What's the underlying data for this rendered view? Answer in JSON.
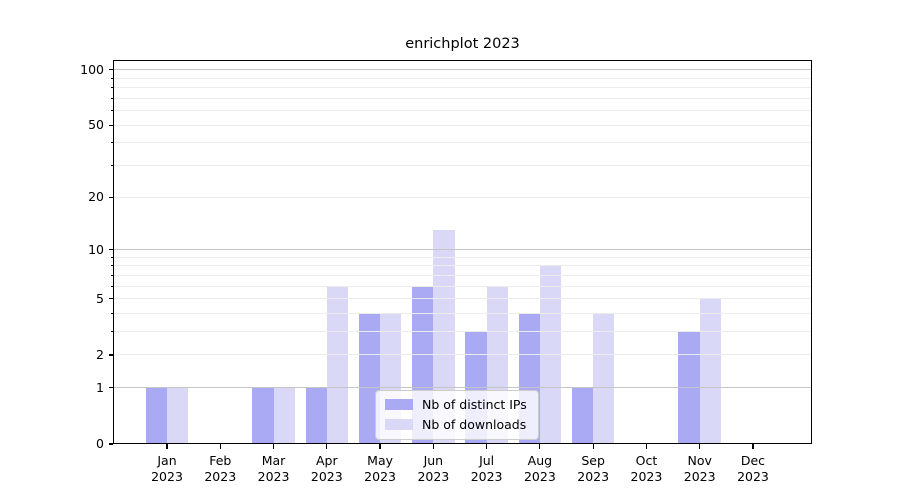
{
  "chart_data": {
    "type": "bar",
    "title": "enrichplot 2023",
    "categories": [
      "Jan 2023",
      "Feb 2023",
      "Mar 2023",
      "Apr 2023",
      "May 2023",
      "Jun 2023",
      "Jul 2023",
      "Aug 2023",
      "Sep 2023",
      "Oct 2023",
      "Nov 2023",
      "Dec 2023"
    ],
    "series": [
      {
        "name": "Nb of distinct IPs",
        "color": "#a9a9f4",
        "values": [
          1,
          0,
          1,
          1,
          4,
          6,
          3,
          4,
          1,
          0,
          3,
          0
        ]
      },
      {
        "name": "Nb of downloads",
        "color": "#d9d9f7",
        "values": [
          1,
          0,
          1,
          6,
          4,
          13,
          6,
          8,
          4,
          0,
          5,
          0
        ]
      }
    ],
    "xlabel": "",
    "ylabel": "",
    "yscale": "log1p",
    "ylim": [
      0,
      113
    ],
    "yticks": [
      0,
      1,
      2,
      5,
      10,
      20,
      50,
      100
    ],
    "major_gridlines": [
      1,
      10,
      100
    ],
    "minor_gridlines": [
      2,
      3,
      4,
      5,
      6,
      7,
      8,
      9,
      20,
      30,
      40,
      50,
      60,
      70,
      80,
      90
    ],
    "grid": "horizontal",
    "legend_position": "lower center"
  }
}
